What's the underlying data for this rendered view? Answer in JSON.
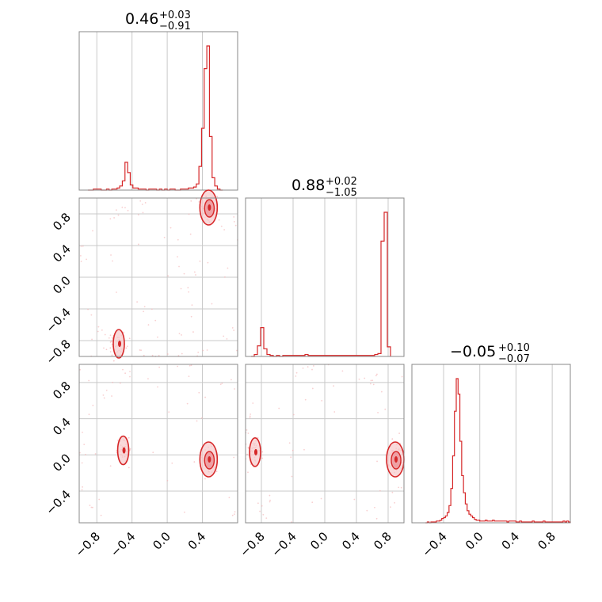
{
  "chart_data": [
    {
      "type": "histogram",
      "panel": "diag-0",
      "title": {
        "value": "0.46",
        "plus": "+0.03",
        "minus": "−0.91"
      },
      "xlim": [
        -1.0,
        0.8
      ],
      "bins": {
        "start": -0.9,
        "end": 0.6,
        "width": 0.03,
        "counts": [
          0,
          0,
          1,
          1,
          1,
          0,
          0,
          1,
          0,
          1,
          1,
          2,
          4,
          9,
          27,
          17,
          5,
          2,
          2,
          1,
          1,
          1,
          0,
          1,
          1,
          1,
          0,
          1,
          0,
          1,
          0,
          1,
          1,
          0,
          0,
          1,
          1,
          1,
          2,
          2,
          3,
          6,
          23,
          60,
          118,
          140,
          52,
          12,
          4,
          1,
          0
        ]
      }
    },
    {
      "type": "scatter",
      "panel": "lower-1-0",
      "xlim": [
        -1.0,
        0.8
      ],
      "ylim": [
        -1.0,
        1.0
      ],
      "clusters": [
        {
          "x": 0.47,
          "y": 0.88,
          "weight": "high"
        },
        {
          "x": -0.55,
          "y": -0.84,
          "weight": "low"
        }
      ],
      "contour_color": "#d62728"
    },
    {
      "type": "histogram",
      "panel": "diag-1",
      "title": {
        "value": "0.88",
        "plus": "+0.02",
        "minus": "−1.05"
      },
      "xlim": [
        -1.0,
        1.0
      ],
      "bins": {
        "start": -0.93,
        "end": 0.99,
        "width": 0.04,
        "counts": [
          0,
          2,
          11,
          30,
          8,
          2,
          1,
          0,
          1,
          0,
          1,
          1,
          1,
          1,
          1,
          1,
          1,
          2,
          1,
          1,
          1,
          1,
          1,
          1,
          1,
          1,
          1,
          1,
          1,
          1,
          1,
          1,
          1,
          1,
          1,
          1,
          1,
          1,
          1,
          2,
          3,
          120,
          150,
          10
        ]
      }
    },
    {
      "type": "scatter",
      "panel": "lower-2-0",
      "xlim": [
        -1.0,
        0.8
      ],
      "ylim": [
        -0.75,
        1.0
      ],
      "clusters": [
        {
          "x": -0.5,
          "y": 0.05,
          "weight": "low"
        },
        {
          "x": 0.47,
          "y": -0.05,
          "weight": "high"
        }
      ],
      "contour_color": "#d62728"
    },
    {
      "type": "scatter",
      "panel": "lower-2-1",
      "xlim": [
        -1.0,
        1.0
      ],
      "ylim": [
        -0.75,
        1.0
      ],
      "clusters": [
        {
          "x": -0.88,
          "y": 0.03,
          "weight": "low"
        },
        {
          "x": 0.89,
          "y": -0.05,
          "weight": "high"
        }
      ],
      "contour_color": "#d62728"
    },
    {
      "type": "histogram",
      "panel": "diag-2",
      "title": {
        "value": "−0.05",
        "plus": "+0.10",
        "minus": "−0.07"
      },
      "xlim": [
        -0.75,
        1.0
      ],
      "bins": {
        "start": -0.6,
        "end": 1.0,
        "width": 0.02,
        "counts": [
          0,
          1,
          0,
          1,
          1,
          1,
          2,
          2,
          3,
          5,
          6,
          8,
          12,
          20,
          40,
          78,
          130,
          168,
          150,
          95,
          55,
          35,
          22,
          14,
          10,
          8,
          6,
          4,
          3,
          3,
          2,
          2,
          2,
          3,
          2,
          2,
          2,
          3,
          2,
          2,
          2,
          2,
          2,
          2,
          2,
          1,
          2,
          2,
          2,
          2,
          1,
          1,
          2,
          1,
          1,
          1,
          1,
          1,
          1,
          2,
          1,
          1,
          1,
          1,
          1,
          2,
          1,
          1,
          1,
          1,
          1,
          1,
          1,
          1,
          1,
          1,
          2,
          1,
          2,
          1
        ]
      }
    }
  ],
  "axes": {
    "row1_y_ticks": [
      "0.8",
      "0.4",
      "0.0",
      "−0.4",
      "−0.8"
    ],
    "row2_y_ticks": [
      "0.8",
      "0.4",
      "0.0",
      "−0.4"
    ],
    "col0_x_ticks": [
      "−0.8",
      "−0.4",
      "0.0",
      "0.4"
    ],
    "col1_x_ticks": [
      "−0.8",
      "−0.4",
      "0.0",
      "0.4",
      "0.8"
    ],
    "col2_x_ticks": [
      "−0.4",
      "0.0",
      "0.4",
      "0.8"
    ]
  },
  "colors": {
    "line": "#d62728",
    "grid": "#c8c8c8",
    "frame": "#888888",
    "points": "#f3b0b3"
  }
}
